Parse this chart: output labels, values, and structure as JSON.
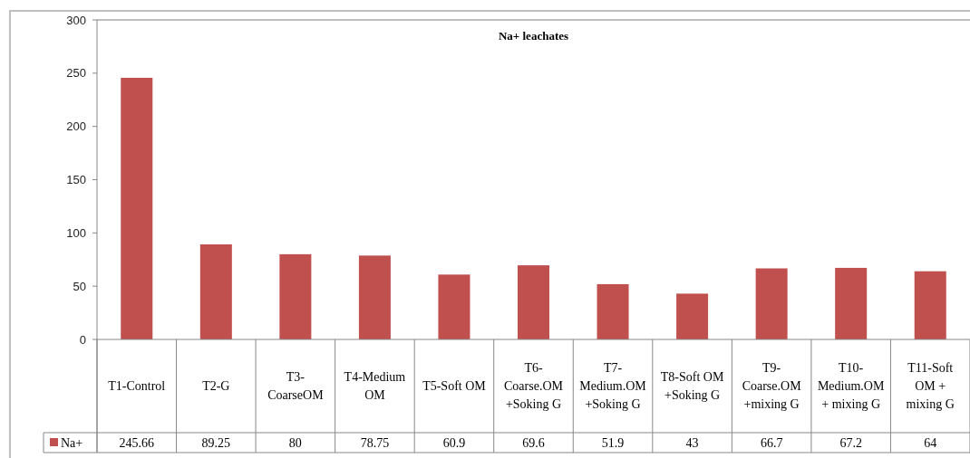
{
  "chart_data": {
    "type": "bar",
    "title": "Na+ leachates",
    "categories": [
      "T1-Control",
      "T2-G",
      "T3-CoarseOM",
      "T4-Medium OM",
      "T5-Soft OM",
      "T6-Coarse.OM +Soking G",
      "T7-Medium.OM +Soking G",
      "T8-Soft OM +Soking G",
      "T9-Coarse.OM +mixing G",
      "T10-Medium.OM + mixing G",
      "T11-Soft OM + mixing G"
    ],
    "series": [
      {
        "name": "Na+",
        "color": "#c0504d",
        "values": [
          245.66,
          89.25,
          80,
          78.75,
          60.9,
          69.6,
          51.9,
          43,
          66.7,
          67.2,
          64
        ]
      }
    ],
    "ylim": [
      0,
      300
    ],
    "yticks": [
      0,
      50,
      100,
      150,
      200,
      250,
      300
    ],
    "grid": false,
    "legend": "bottom",
    "data_labels": true
  }
}
